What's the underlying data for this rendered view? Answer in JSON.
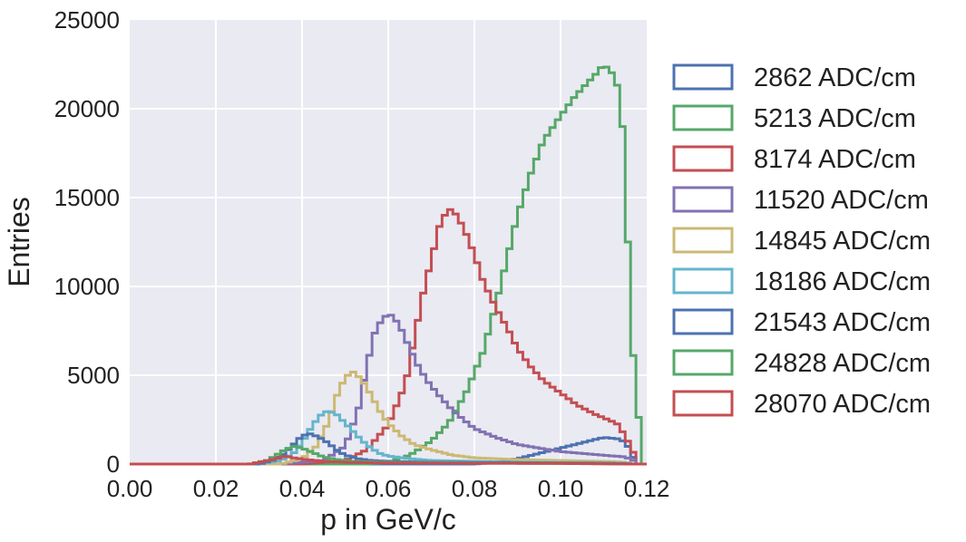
{
  "chart_data": {
    "type": "line",
    "style": "step-histogram",
    "title": "",
    "xlabel": "p in GeV/c",
    "ylabel": "Entries",
    "xlim": [
      0.0,
      0.12
    ],
    "ylim": [
      0,
      25000
    ],
    "xticks": [
      0.0,
      0.02,
      0.04,
      0.06,
      0.08,
      0.1,
      0.12
    ],
    "xtick_labels": [
      "0.00",
      "0.02",
      "0.04",
      "0.06",
      "0.08",
      "0.10",
      "0.12"
    ],
    "yticks": [
      0,
      5000,
      10000,
      15000,
      20000,
      25000
    ],
    "ytick_labels": [
      "0",
      "5000",
      "10000",
      "15000",
      "20000",
      "25000"
    ],
    "grid": true,
    "legend_position": "outside-right",
    "background_color": "#EAEAF2",
    "bin_width": 0.00125,
    "series": [
      {
        "name": "2862 ADC/cm",
        "color": "#4C72B0",
        "points": [
          [
            0.0,
            0
          ],
          [
            0.08,
            0
          ],
          [
            0.085,
            100
          ],
          [
            0.09,
            300
          ],
          [
            0.095,
            600
          ],
          [
            0.1,
            900
          ],
          [
            0.105,
            1200
          ],
          [
            0.11,
            1500
          ],
          [
            0.114,
            1400
          ],
          [
            0.116,
            900
          ],
          [
            0.117,
            300
          ],
          [
            0.118,
            0
          ]
        ]
      },
      {
        "name": "5213 ADC/cm",
        "color": "#55A868",
        "points": [
          [
            0.0,
            0
          ],
          [
            0.055,
            0
          ],
          [
            0.06,
            100
          ],
          [
            0.065,
            500
          ],
          [
            0.07,
            1300
          ],
          [
            0.074,
            2300
          ],
          [
            0.078,
            4000
          ],
          [
            0.082,
            6300
          ],
          [
            0.085,
            9000
          ],
          [
            0.088,
            12000
          ],
          [
            0.09,
            14000
          ],
          [
            0.093,
            16300
          ],
          [
            0.096,
            18200
          ],
          [
            0.1,
            19600
          ],
          [
            0.103,
            20600
          ],
          [
            0.106,
            21400
          ],
          [
            0.108,
            21900
          ],
          [
            0.11,
            22500
          ],
          [
            0.112,
            22000
          ],
          [
            0.114,
            20800
          ],
          [
            0.115,
            16000
          ],
          [
            0.116,
            10400
          ],
          [
            0.117,
            5500
          ],
          [
            0.118,
            3000
          ],
          [
            0.119,
            0
          ]
        ]
      },
      {
        "name": "8174 ADC/cm",
        "color": "#C44E52",
        "points": [
          [
            0.0,
            0
          ],
          [
            0.04,
            0
          ],
          [
            0.05,
            200
          ],
          [
            0.055,
            800
          ],
          [
            0.06,
            2200
          ],
          [
            0.064,
            4500
          ],
          [
            0.066,
            7000
          ],
          [
            0.068,
            9500
          ],
          [
            0.07,
            11500
          ],
          [
            0.072,
            13500
          ],
          [
            0.074,
            14400
          ],
          [
            0.076,
            14000
          ],
          [
            0.078,
            13000
          ],
          [
            0.08,
            11800
          ],
          [
            0.082,
            10300
          ],
          [
            0.085,
            8800
          ],
          [
            0.088,
            7500
          ],
          [
            0.09,
            6500
          ],
          [
            0.093,
            5500
          ],
          [
            0.096,
            4700
          ],
          [
            0.1,
            4000
          ],
          [
            0.104,
            3300
          ],
          [
            0.108,
            2800
          ],
          [
            0.11,
            2600
          ],
          [
            0.113,
            2300
          ],
          [
            0.115,
            1600
          ],
          [
            0.117,
            600
          ],
          [
            0.118,
            0
          ]
        ]
      },
      {
        "name": "11520 ADC/cm",
        "color": "#8172B2",
        "points": [
          [
            0.0,
            0
          ],
          [
            0.035,
            0
          ],
          [
            0.045,
            200
          ],
          [
            0.05,
            1000
          ],
          [
            0.053,
            3000
          ],
          [
            0.055,
            5500
          ],
          [
            0.057,
            7500
          ],
          [
            0.059,
            8300
          ],
          [
            0.061,
            8400
          ],
          [
            0.063,
            7600
          ],
          [
            0.065,
            6500
          ],
          [
            0.067,
            5500
          ],
          [
            0.069,
            4700
          ],
          [
            0.072,
            3800
          ],
          [
            0.075,
            3000
          ],
          [
            0.078,
            2400
          ],
          [
            0.08,
            2000
          ],
          [
            0.085,
            1500
          ],
          [
            0.09,
            1100
          ],
          [
            0.095,
            900
          ],
          [
            0.1,
            700
          ],
          [
            0.105,
            600
          ],
          [
            0.11,
            500
          ],
          [
            0.115,
            400
          ],
          [
            0.117,
            200
          ],
          [
            0.118,
            0
          ]
        ]
      },
      {
        "name": "14845 ADC/cm",
        "color": "#CCB974",
        "points": [
          [
            0.0,
            0
          ],
          [
            0.035,
            0
          ],
          [
            0.04,
            300
          ],
          [
            0.043,
            900
          ],
          [
            0.046,
            2300
          ],
          [
            0.048,
            3800
          ],
          [
            0.05,
            4900
          ],
          [
            0.052,
            5200
          ],
          [
            0.054,
            4700
          ],
          [
            0.056,
            3900
          ],
          [
            0.058,
            3000
          ],
          [
            0.06,
            2300
          ],
          [
            0.063,
            1600
          ],
          [
            0.066,
            1100
          ],
          [
            0.07,
            800
          ],
          [
            0.075,
            500
          ],
          [
            0.08,
            350
          ],
          [
            0.09,
            250
          ],
          [
            0.1,
            200
          ],
          [
            0.11,
            150
          ],
          [
            0.115,
            100
          ],
          [
            0.117,
            0
          ]
        ]
      },
      {
        "name": "18186 ADC/cm",
        "color": "#64B5CD",
        "points": [
          [
            0.0,
            0
          ],
          [
            0.03,
            0
          ],
          [
            0.035,
            200
          ],
          [
            0.038,
            600
          ],
          [
            0.04,
            1200
          ],
          [
            0.042,
            2000
          ],
          [
            0.044,
            2700
          ],
          [
            0.046,
            3000
          ],
          [
            0.048,
            2800
          ],
          [
            0.05,
            2300
          ],
          [
            0.052,
            1800
          ],
          [
            0.054,
            1300
          ],
          [
            0.056,
            900
          ],
          [
            0.058,
            600
          ],
          [
            0.06,
            450
          ],
          [
            0.065,
            300
          ],
          [
            0.07,
            200
          ],
          [
            0.08,
            150
          ],
          [
            0.09,
            100
          ],
          [
            0.1,
            80
          ],
          [
            0.115,
            50
          ],
          [
            0.117,
            0
          ]
        ]
      },
      {
        "name": "21543 ADC/cm",
        "color": "#4C72B0",
        "points": [
          [
            0.0,
            0
          ],
          [
            0.03,
            0
          ],
          [
            0.033,
            200
          ],
          [
            0.036,
            600
          ],
          [
            0.038,
            1100
          ],
          [
            0.04,
            1600
          ],
          [
            0.042,
            1700
          ],
          [
            0.044,
            1500
          ],
          [
            0.046,
            1200
          ],
          [
            0.048,
            800
          ],
          [
            0.05,
            500
          ],
          [
            0.053,
            300
          ],
          [
            0.056,
            200
          ],
          [
            0.06,
            150
          ],
          [
            0.07,
            100
          ],
          [
            0.09,
            80
          ],
          [
            0.11,
            50
          ],
          [
            0.117,
            0
          ]
        ]
      },
      {
        "name": "24828 ADC/cm",
        "color": "#55A868",
        "points": [
          [
            0.0,
            0
          ],
          [
            0.028,
            0
          ],
          [
            0.032,
            200
          ],
          [
            0.034,
            500
          ],
          [
            0.036,
            800
          ],
          [
            0.038,
            1000
          ],
          [
            0.04,
            900
          ],
          [
            0.042,
            700
          ],
          [
            0.045,
            400
          ],
          [
            0.048,
            250
          ],
          [
            0.052,
            150
          ],
          [
            0.06,
            100
          ],
          [
            0.08,
            60
          ],
          [
            0.1,
            40
          ],
          [
            0.117,
            0
          ]
        ]
      },
      {
        "name": "28070 ADC/cm",
        "color": "#C44E52",
        "points": [
          [
            0.0,
            0
          ],
          [
            0.028,
            0
          ],
          [
            0.031,
            150
          ],
          [
            0.034,
            300
          ],
          [
            0.036,
            450
          ],
          [
            0.038,
            350
          ],
          [
            0.041,
            250
          ],
          [
            0.045,
            150
          ],
          [
            0.05,
            100
          ],
          [
            0.06,
            60
          ],
          [
            0.08,
            40
          ],
          [
            0.1,
            30
          ],
          [
            0.117,
            0
          ]
        ]
      }
    ]
  }
}
